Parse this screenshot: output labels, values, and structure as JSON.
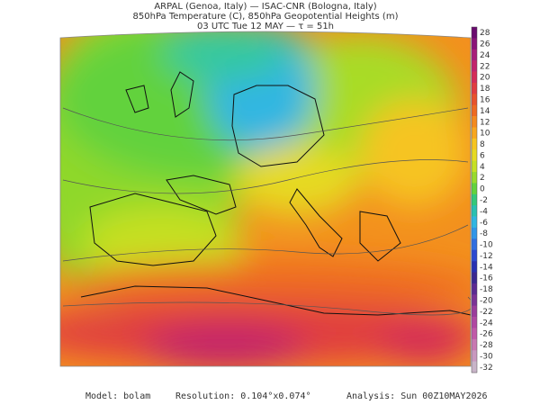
{
  "header": {
    "line1": "ARPAL (Genoa, Italy)  —  ISAC-CNR (Bologna, Italy)",
    "line2": "850hPa Temperature (C), 850hPa Geopotential Heights (m)",
    "line3": "03 UTC Tue 12 MAY  —  τ = 51h"
  },
  "colorbar": {
    "ticks": [
      28,
      26,
      24,
      22,
      20,
      18,
      16,
      14,
      12,
      10,
      8,
      6,
      4,
      2,
      0,
      -2,
      -4,
      -6,
      -8,
      -10,
      -12,
      -14,
      -16,
      -18,
      -20,
      -22,
      -24,
      -26,
      -28,
      -30,
      -32
    ],
    "colors": [
      "#6a0b6e",
      "#8a1478",
      "#a81e7a",
      "#c2236c",
      "#d42c58",
      "#e03c40",
      "#e8522c",
      "#ee6a22",
      "#f38a1e",
      "#f7a61e",
      "#f6c420",
      "#e6da22",
      "#c6e024",
      "#98da2c",
      "#62d23c",
      "#34c87a",
      "#2ac0b2",
      "#30b6e2",
      "#3096e8",
      "#306ee0",
      "#2c48d0",
      "#2830b2",
      "#3a2890",
      "#5a2a92",
      "#7a3296",
      "#9a3c9c",
      "#b048a2",
      "#c05aa8",
      "#c878b2",
      "#c898be",
      "#c8b4c8"
    ]
  },
  "footer": {
    "model": "Model: bolam",
    "resolution": "Resolution: 0.104°x0.074°",
    "analysis": "Analysis: Sun 00Z10MAY2026"
  }
}
